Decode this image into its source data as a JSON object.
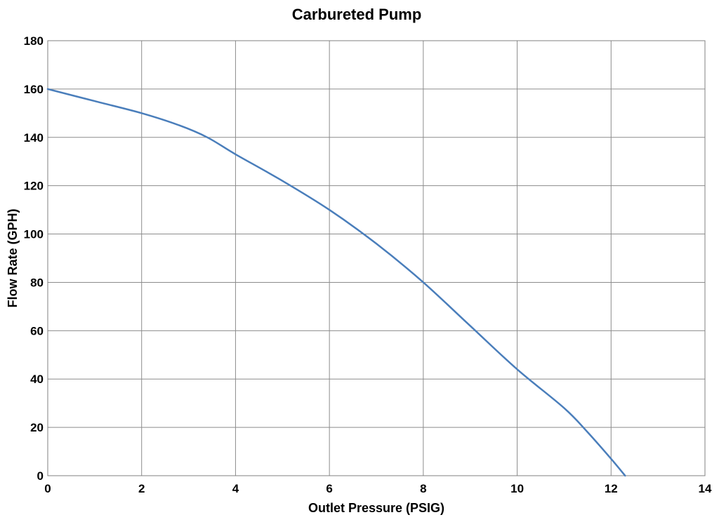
{
  "chart_data": {
    "type": "line",
    "title": "Carbureted Pump",
    "xlabel": "Outlet Pressure (PSIG)",
    "ylabel": "Flow Rate (GPH)",
    "xlim": [
      0,
      14
    ],
    "ylim": [
      0,
      180
    ],
    "x_ticks": [
      0,
      2,
      4,
      6,
      8,
      10,
      12,
      14
    ],
    "y_ticks": [
      0,
      20,
      40,
      60,
      80,
      100,
      120,
      140,
      160,
      180
    ],
    "grid": true,
    "line_color": "#4a7ebb",
    "series": [
      {
        "x": [
          0,
          1,
          2,
          2.8,
          3.4,
          4,
          5,
          6,
          7,
          8,
          9,
          10,
          11,
          11.5,
          12,
          12.3
        ],
        "y": [
          160,
          155,
          150,
          145,
          140,
          133,
          122,
          110,
          96,
          80,
          62,
          44,
          28,
          18,
          7,
          0
        ]
      }
    ]
  }
}
